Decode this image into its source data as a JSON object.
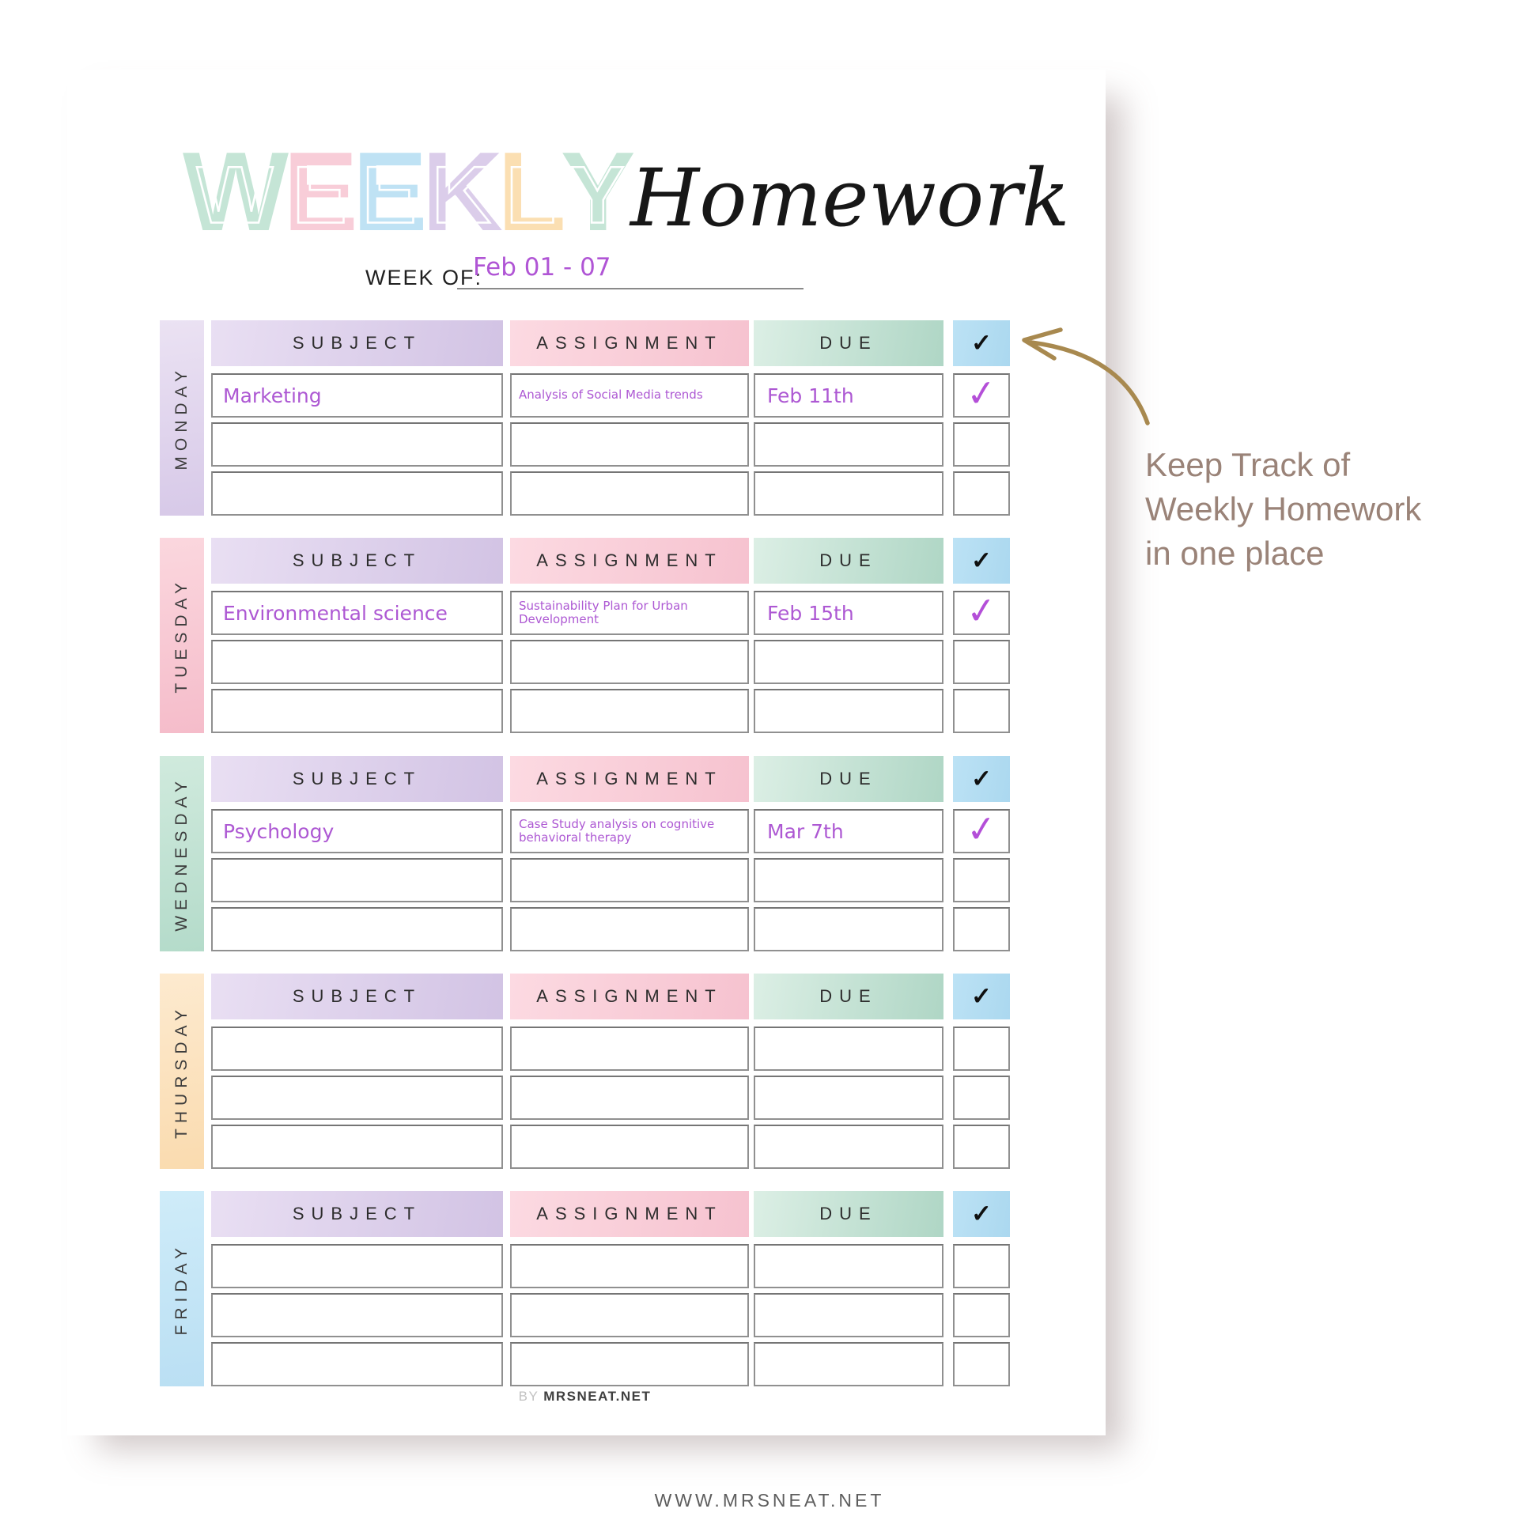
{
  "title": {
    "letters": [
      {
        "ch": "W",
        "color": "#c5e5d6"
      },
      {
        "ch": "E",
        "color": "#f8cdd8"
      },
      {
        "ch": "E",
        "color": "#bfe2f4"
      },
      {
        "ch": "K",
        "color": "#dbcdea"
      },
      {
        "ch": "L",
        "color": "#fbdfb2"
      },
      {
        "ch": "Y",
        "color": "#c5e5d6"
      }
    ],
    "script_word": "Homework"
  },
  "week_of": {
    "label": "WEEK OF:",
    "value": "Feb 01 - 07"
  },
  "columns": [
    {
      "key": "subject",
      "label": "SUBJECT",
      "color_from": "#e9dff3",
      "color_to": "#d2c3e4"
    },
    {
      "key": "assignment",
      "label": "ASSIGNMENT",
      "color_from": "#fcdae2",
      "color_to": "#f6c2cf"
    },
    {
      "key": "due",
      "label": "DUE",
      "color_from": "#dcefe5",
      "color_to": "#afd6c5"
    },
    {
      "key": "check",
      "label": "✓",
      "color_from": "#bce2f5",
      "color_to": "#abd8ef"
    }
  ],
  "days": [
    {
      "name": "MONDAY",
      "bar_from": "#ebe2f3",
      "bar_to": "#d7c9e8",
      "rows": [
        {
          "subject": "Marketing",
          "assignment": "Analysis of Social Media trends",
          "due": "Feb 11th",
          "done": true
        },
        {
          "subject": "",
          "assignment": "",
          "due": "",
          "done": false
        },
        {
          "subject": "",
          "assignment": "",
          "due": "",
          "done": false
        }
      ]
    },
    {
      "name": "TUESDAY",
      "bar_from": "#fbd7de",
      "bar_to": "#f5bcca",
      "rows": [
        {
          "subject": "Environmental science",
          "assignment": "Sustainability Plan for Urban Development",
          "due": "Feb 15th",
          "done": true
        },
        {
          "subject": "",
          "assignment": "",
          "due": "",
          "done": false
        },
        {
          "subject": "",
          "assignment": "",
          "due": "",
          "done": false
        }
      ]
    },
    {
      "name": "WEDNESDAY",
      "bar_from": "#d0eadd",
      "bar_to": "#b4dbca",
      "rows": [
        {
          "subject": "Psychology",
          "assignment": "Case Study analysis on cognitive behavioral therapy",
          "due": "Mar 7th",
          "done": true
        },
        {
          "subject": "",
          "assignment": "",
          "due": "",
          "done": false
        },
        {
          "subject": "",
          "assignment": "",
          "due": "",
          "done": false
        }
      ]
    },
    {
      "name": "THURSDAY",
      "bar_from": "#fdeacf",
      "bar_to": "#fadbaf",
      "rows": [
        {
          "subject": "",
          "assignment": "",
          "due": "",
          "done": false
        },
        {
          "subject": "",
          "assignment": "",
          "due": "",
          "done": false
        },
        {
          "subject": "",
          "assignment": "",
          "due": "",
          "done": false
        }
      ]
    },
    {
      "name": "FRIDAY",
      "bar_from": "#cfecf9",
      "bar_to": "#badff3",
      "rows": [
        {
          "subject": "",
          "assignment": "",
          "due": "",
          "done": false
        },
        {
          "subject": "",
          "assignment": "",
          "due": "",
          "done": false
        },
        {
          "subject": "",
          "assignment": "",
          "due": "",
          "done": false
        }
      ]
    }
  ],
  "marks": {
    "done_glyph": "✓"
  },
  "footer": {
    "by": "BY",
    "site": "MRSNEAT.NET"
  },
  "annotation": {
    "lines": [
      "Keep Track of",
      "Weekly Homework",
      "in one place"
    ],
    "text_color": "#9a8378",
    "arrow_color": "#a8894f"
  },
  "bottom_url": "WWW.MRSNEAT.NET"
}
